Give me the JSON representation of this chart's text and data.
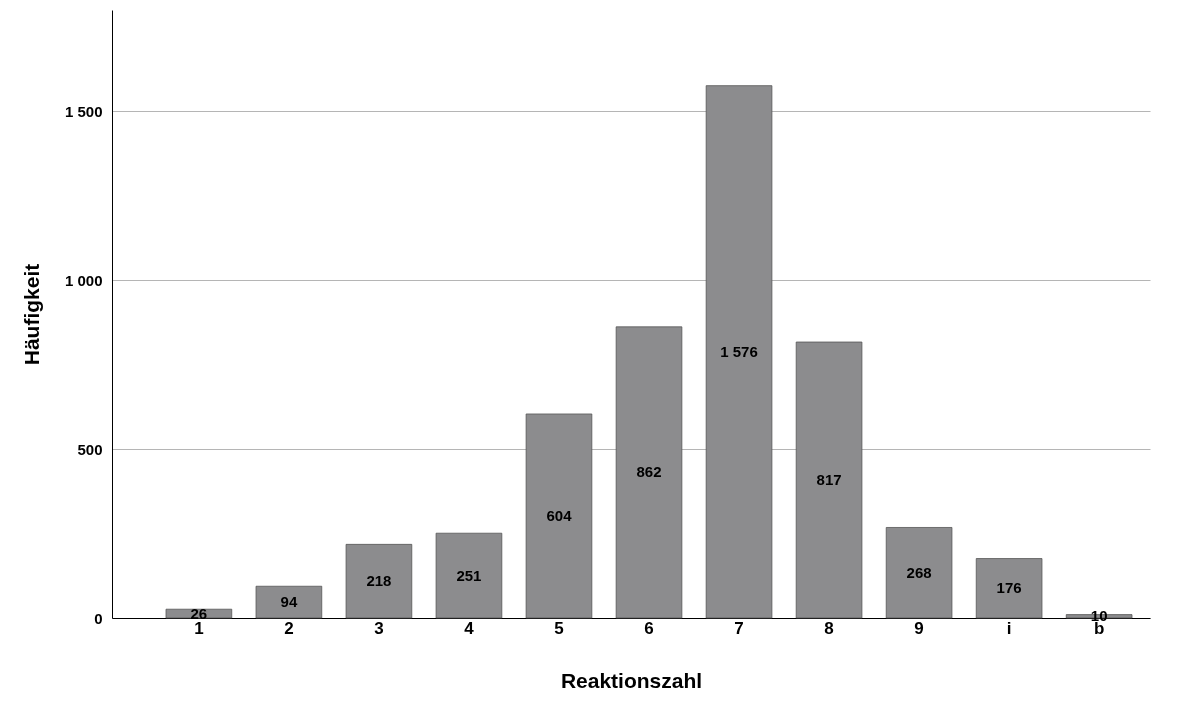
{
  "chart_data": {
    "type": "bar",
    "xlabel": "Reaktionszahl",
    "ylabel": "Häufigkeit",
    "categories": [
      "1",
      "2",
      "3",
      "4",
      "5",
      "6",
      "7",
      "8",
      "9",
      "i",
      "b"
    ],
    "values": [
      26,
      94,
      218,
      251,
      604,
      862,
      1576,
      817,
      268,
      176,
      10
    ],
    "value_labels": [
      "26",
      "94",
      "218",
      "251",
      "604",
      "862",
      "1 576",
      "817",
      "268",
      "176",
      "10"
    ],
    "color": "#8c8c8e",
    "ylim": [
      0,
      1800
    ],
    "yticks": [
      0,
      500,
      {
        "value": 1000,
        "label": "1 000"
      },
      {
        "value": 1500,
        "label": "1 500"
      }
    ],
    "grid": "y"
  }
}
